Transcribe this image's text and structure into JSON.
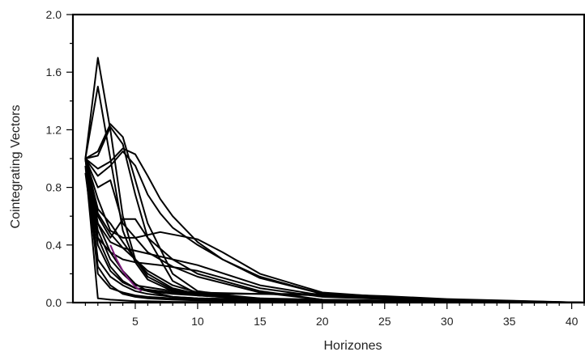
{
  "chart_data": {
    "type": "line",
    "xlabel": "Horizones",
    "ylabel": "Cointegrating Vectors",
    "xlim": [
      0,
      41
    ],
    "ylim": [
      0,
      2.0
    ],
    "x_ticks": [
      5,
      10,
      15,
      20,
      25,
      30,
      35,
      40
    ],
    "x_tick_labels": [
      "5",
      "10",
      "15",
      "20",
      "25",
      "30",
      "35",
      "40"
    ],
    "y_ticks": [
      0,
      0.4,
      0.8,
      1.2,
      1.6,
      2.0
    ],
    "y_tick_labels": [
      "0.0",
      "0.4",
      "0.8",
      "1.2",
      "1.6",
      "2.0"
    ],
    "grid": false,
    "colors": {
      "series": "#000000",
      "highlight": "#7a1a7a"
    },
    "series": [
      {
        "x": [
          1,
          2,
          3,
          4,
          5,
          6,
          8,
          10,
          15,
          20,
          30,
          41
        ],
        "values": [
          1.0,
          1.7,
          1.2,
          0.6,
          0.3,
          0.18,
          0.09,
          0.05,
          0.02,
          0.01,
          0.005,
          0.0
        ]
      },
      {
        "x": [
          1,
          2,
          3,
          4,
          5,
          6,
          8,
          10,
          15,
          20,
          30,
          41
        ],
        "values": [
          1.0,
          1.5,
          1.0,
          0.5,
          0.28,
          0.16,
          0.08,
          0.05,
          0.02,
          0.01,
          0.005,
          0.0
        ]
      },
      {
        "x": [
          1,
          2,
          3,
          4,
          5,
          6,
          8,
          10,
          15,
          20,
          30,
          41
        ],
        "values": [
          1.0,
          1.05,
          1.24,
          1.15,
          0.85,
          0.55,
          0.2,
          0.08,
          0.02,
          0.01,
          0.005,
          0.0
        ]
      },
      {
        "x": [
          1,
          2,
          3,
          4,
          5,
          6,
          8,
          10,
          15,
          20,
          30,
          41
        ],
        "values": [
          1.0,
          1.02,
          1.22,
          1.1,
          0.75,
          0.45,
          0.15,
          0.06,
          0.02,
          0.01,
          0.005,
          0.0
        ]
      },
      {
        "x": [
          1,
          2,
          3,
          4,
          5,
          6,
          7,
          8,
          10,
          12,
          15,
          20,
          25,
          30,
          41
        ],
        "values": [
          1.0,
          0.93,
          0.98,
          1.07,
          1.03,
          0.88,
          0.72,
          0.6,
          0.42,
          0.3,
          0.17,
          0.06,
          0.03,
          0.015,
          0.0
        ]
      },
      {
        "x": [
          1,
          2,
          3,
          4,
          5,
          6,
          7,
          8,
          10,
          12,
          15,
          20,
          25,
          30,
          41
        ],
        "values": [
          1.0,
          0.88,
          0.95,
          1.05,
          0.95,
          0.75,
          0.62,
          0.52,
          0.4,
          0.3,
          0.18,
          0.06,
          0.03,
          0.015,
          0.0
        ]
      },
      {
        "x": [
          1,
          2,
          3,
          4,
          5,
          7,
          10,
          12,
          15,
          20,
          25,
          30,
          41
        ],
        "values": [
          1.0,
          0.72,
          0.5,
          0.45,
          0.45,
          0.49,
          0.44,
          0.35,
          0.2,
          0.07,
          0.04,
          0.02,
          0.0
        ]
      },
      {
        "x": [
          1,
          2,
          3,
          4,
          5,
          6,
          8,
          10,
          15,
          20,
          30,
          41
        ],
        "values": [
          1.0,
          0.8,
          0.85,
          0.55,
          0.45,
          0.35,
          0.25,
          0.18,
          0.07,
          0.02,
          0.005,
          0.0
        ]
      },
      {
        "x": [
          1,
          2,
          3,
          4,
          5,
          6,
          8,
          10,
          15,
          20,
          30,
          41
        ],
        "values": [
          1.0,
          0.6,
          0.45,
          0.58,
          0.58,
          0.45,
          0.3,
          0.2,
          0.08,
          0.02,
          0.005,
          0.0
        ]
      },
      {
        "x": [
          1,
          2,
          3,
          4,
          5,
          7,
          10,
          15,
          20,
          30,
          41
        ],
        "values": [
          1.0,
          0.55,
          0.42,
          0.38,
          0.36,
          0.32,
          0.26,
          0.12,
          0.05,
          0.01,
          0.0
        ]
      },
      {
        "x": [
          1,
          2,
          3,
          4,
          5,
          7,
          10,
          15,
          20,
          30,
          41
        ],
        "values": [
          1.0,
          0.45,
          0.35,
          0.3,
          0.28,
          0.26,
          0.22,
          0.1,
          0.04,
          0.01,
          0.0
        ]
      },
      {
        "x": [
          1,
          2,
          3,
          4,
          5,
          6,
          8,
          10,
          15,
          20,
          30,
          41
        ],
        "values": [
          1.0,
          0.62,
          0.48,
          0.38,
          0.3,
          0.22,
          0.12,
          0.07,
          0.03,
          0.01,
          0.005,
          0.0
        ]
      },
      {
        "x": [
          1,
          2,
          3,
          4,
          5,
          6,
          8,
          10,
          15,
          20,
          30,
          41
        ],
        "values": [
          1.0,
          0.65,
          0.55,
          0.42,
          0.3,
          0.2,
          0.1,
          0.06,
          0.02,
          0.01,
          0.005,
          0.0
        ]
      },
      {
        "x": [
          1,
          2,
          3,
          4,
          5,
          6,
          8,
          10,
          15,
          20,
          30,
          41
        ],
        "values": [
          1.0,
          0.55,
          0.35,
          0.22,
          0.13,
          0.08,
          0.04,
          0.03,
          0.02,
          0.01,
          0.005,
          0.0
        ]
      },
      {
        "x": [
          1,
          2,
          3,
          4,
          5,
          6,
          8,
          10,
          15,
          20,
          30,
          41
        ],
        "values": [
          1.0,
          0.4,
          0.22,
          0.14,
          0.1,
          0.08,
          0.06,
          0.05,
          0.03,
          0.02,
          0.01,
          0.0
        ]
      },
      {
        "x": [
          1,
          2,
          3,
          4,
          5,
          6,
          8,
          10,
          15,
          20,
          30,
          41
        ],
        "values": [
          1.0,
          0.3,
          0.18,
          0.12,
          0.08,
          0.06,
          0.04,
          0.03,
          0.02,
          0.01,
          0.005,
          0.0
        ]
      },
      {
        "x": [
          1,
          2,
          3,
          4,
          5,
          6,
          8,
          10,
          15,
          20,
          30,
          41
        ],
        "values": [
          1.0,
          0.2,
          0.1,
          0.07,
          0.05,
          0.04,
          0.03,
          0.02,
          0.01,
          0.005,
          0.002,
          0.0
        ]
      },
      {
        "x": [
          1,
          2,
          3,
          4,
          5,
          6,
          8,
          10,
          15,
          20,
          30,
          41
        ],
        "values": [
          0.95,
          0.03,
          0.02,
          0.015,
          0.01,
          0.01,
          0.005,
          0.005,
          0.002,
          0.001,
          0.0,
          0.0
        ]
      },
      {
        "x": [
          1,
          2,
          3,
          4,
          5,
          6,
          8,
          10,
          15,
          20,
          30,
          41
        ],
        "values": [
          0.9,
          0.25,
          0.12,
          0.06,
          0.04,
          0.03,
          0.02,
          0.015,
          0.01,
          0.005,
          0.002,
          0.0
        ]
      },
      {
        "x": [
          1,
          2,
          3,
          4,
          5,
          8,
          10,
          15,
          20,
          25,
          30,
          41
        ],
        "values": [
          1.0,
          0.5,
          0.3,
          0.2,
          0.12,
          0.08,
          0.07,
          0.06,
          0.05,
          0.04,
          0.02,
          0.0
        ]
      },
      {
        "x": [
          1,
          2,
          3,
          4,
          5,
          8,
          10,
          15,
          20,
          25,
          30,
          41
        ],
        "values": [
          1.0,
          0.45,
          0.25,
          0.15,
          0.1,
          0.07,
          0.06,
          0.06,
          0.06,
          0.045,
          0.025,
          0.0
        ]
      },
      {
        "x": [
          3,
          3.5,
          4,
          4.5,
          5,
          5.5
        ],
        "values": [
          0.4,
          0.3,
          0.22,
          0.16,
          0.11,
          0.08
        ],
        "highlight": true
      }
    ]
  }
}
